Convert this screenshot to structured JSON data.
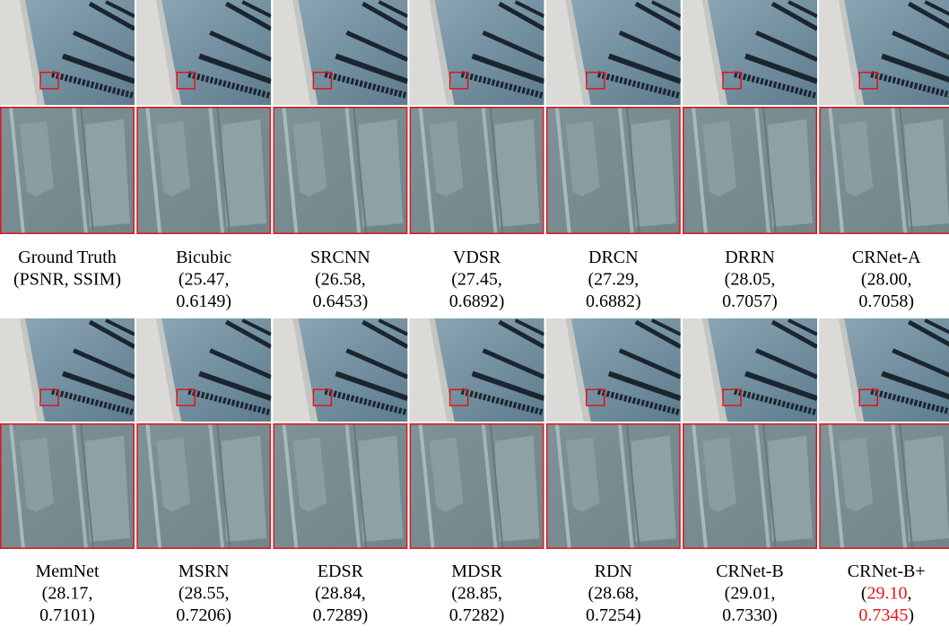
{
  "figure": {
    "highlight_color": "#e8141b",
    "rows": [
      {
        "items": [
          {
            "lines": [
              [
                "Ground Truth"
              ],
              [
                "(PSNR, SSIM)"
              ]
            ]
          },
          {
            "lines": [
              [
                "Bicubic"
              ],
              [
                "(25.47,"
              ],
              [
                "0.6149)"
              ]
            ]
          },
          {
            "lines": [
              [
                "SRCNN"
              ],
              [
                "(26.58,"
              ],
              [
                "0.6453)"
              ]
            ]
          },
          {
            "lines": [
              [
                "VDSR"
              ],
              [
                "(27.45,"
              ],
              [
                "0.6892)"
              ]
            ]
          },
          {
            "lines": [
              [
                "DRCN"
              ],
              [
                "(27.29,"
              ],
              [
                "0.6882)"
              ]
            ]
          },
          {
            "lines": [
              [
                "DRRN"
              ],
              [
                "(28.05,"
              ],
              [
                "0.7057)"
              ]
            ]
          },
          {
            "lines": [
              [
                "CRNet-A"
              ],
              [
                "(28.00,"
              ],
              [
                "0.7058)"
              ]
            ]
          }
        ]
      },
      {
        "items": [
          {
            "lines": [
              [
                "MemNet"
              ],
              [
                "(28.17,"
              ],
              [
                "0.7101)"
              ]
            ]
          },
          {
            "lines": [
              [
                "MSRN"
              ],
              [
                "(28.55,"
              ],
              [
                "0.7206)"
              ]
            ]
          },
          {
            "lines": [
              [
                "EDSR"
              ],
              [
                "(28.84,"
              ],
              [
                "0.7289)"
              ]
            ]
          },
          {
            "lines": [
              [
                "MDSR"
              ],
              [
                "(28.85,"
              ],
              [
                "0.7282)"
              ]
            ]
          },
          {
            "lines": [
              [
                "RDN"
              ],
              [
                "(28.68,"
              ],
              [
                "0.7254)"
              ]
            ]
          },
          {
            "lines": [
              [
                "CRNet-B"
              ],
              [
                "(29.01,"
              ],
              [
                "0.7330)"
              ]
            ]
          },
          {
            "lines": [
              [
                "CRNet-B+"
              ],
              [
                "(",
                {
                  "text": "29.10",
                  "highlight": true
                },
                ","
              ],
              [
                {
                  "text": "0.7345",
                  "highlight": true
                },
                ")"
              ]
            ]
          }
        ]
      }
    ]
  }
}
